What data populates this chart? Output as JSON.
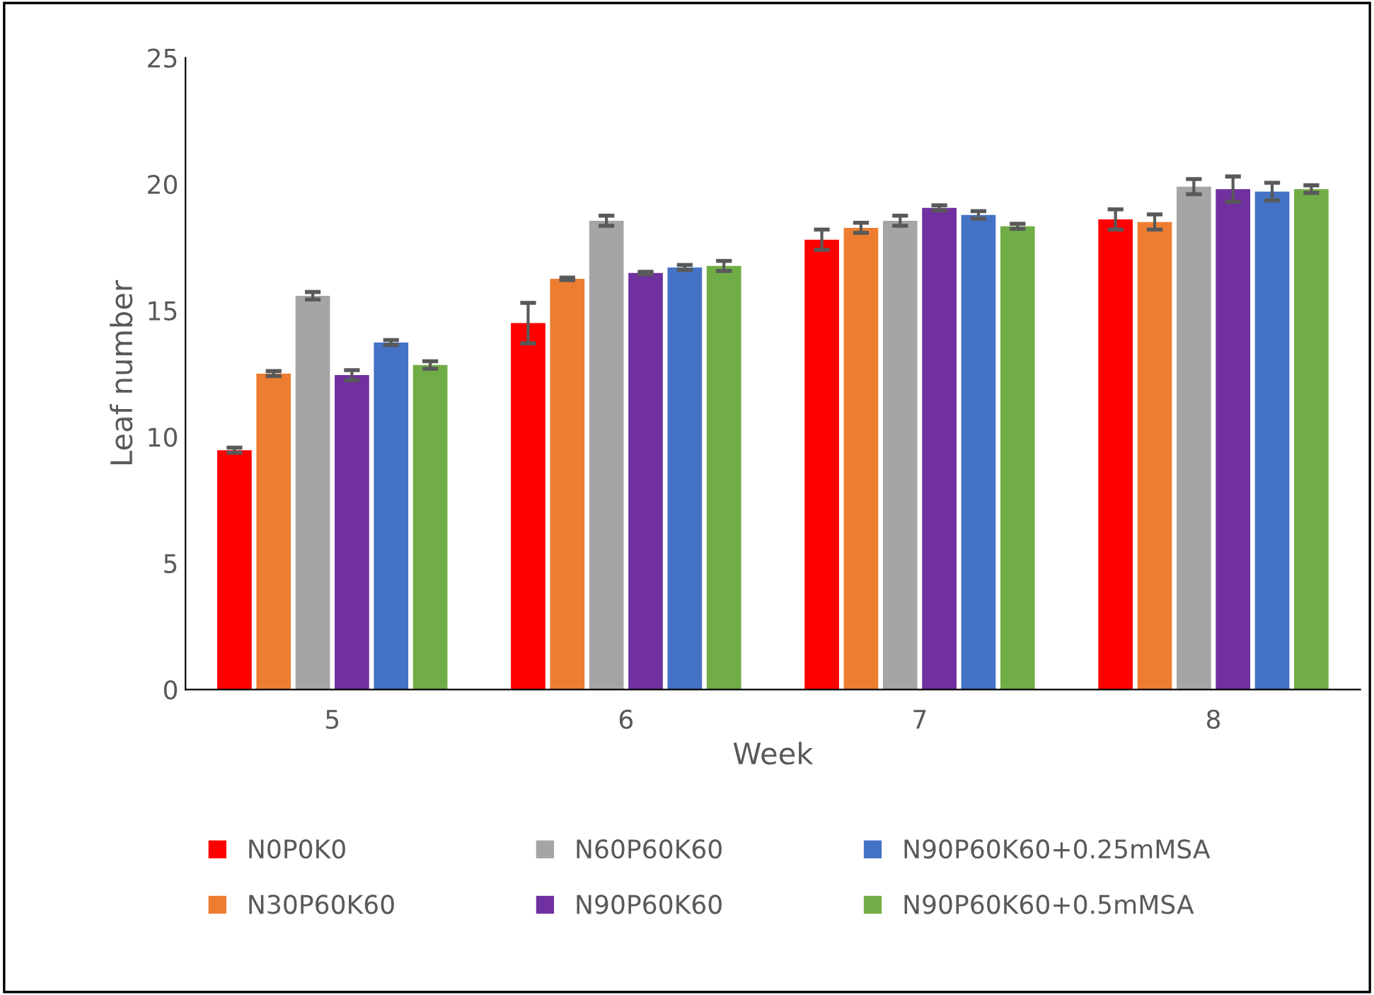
{
  "chart_data": {
    "type": "bar",
    "xlabel": "Week",
    "ylabel": "Leaf number",
    "categories": [
      "5",
      "6",
      "7",
      "8"
    ],
    "ylim": [
      0,
      25
    ],
    "yticks": [
      0,
      5,
      10,
      15,
      20,
      25
    ],
    "grid": false,
    "legend": "bottom",
    "series": [
      {
        "name": "N0P0K0",
        "color": "#ff0000",
        "values": [
          9.47,
          14.5,
          17.8,
          18.6
        ],
        "errors": [
          0.1,
          0.8,
          0.4,
          0.4
        ]
      },
      {
        "name": "N30P60K60",
        "color": "#ed7d31",
        "values": [
          12.5,
          16.25,
          18.27,
          18.5
        ],
        "errors": [
          0.1,
          0.05,
          0.2,
          0.3
        ]
      },
      {
        "name": "N60P60K60",
        "color": "#a5a5a5",
        "values": [
          15.58,
          18.55,
          18.55,
          19.9
        ],
        "errors": [
          0.15,
          0.2,
          0.2,
          0.3
        ]
      },
      {
        "name": "N90P60K60",
        "color": "#7030a0",
        "values": [
          12.44,
          16.48,
          19.06,
          19.8
        ],
        "errors": [
          0.2,
          0.05,
          0.1,
          0.5
        ]
      },
      {
        "name": "N90P60K60+0.25mMSA",
        "color": "#4472c4",
        "values": [
          13.73,
          16.7,
          18.78,
          19.7
        ],
        "errors": [
          0.1,
          0.1,
          0.15,
          0.35
        ]
      },
      {
        "name": "N90P60K60+0.5mMSA",
        "color": "#70ad47",
        "values": [
          12.84,
          16.76,
          18.33,
          19.8
        ],
        "errors": [
          0.15,
          0.2,
          0.1,
          0.15
        ]
      }
    ]
  }
}
